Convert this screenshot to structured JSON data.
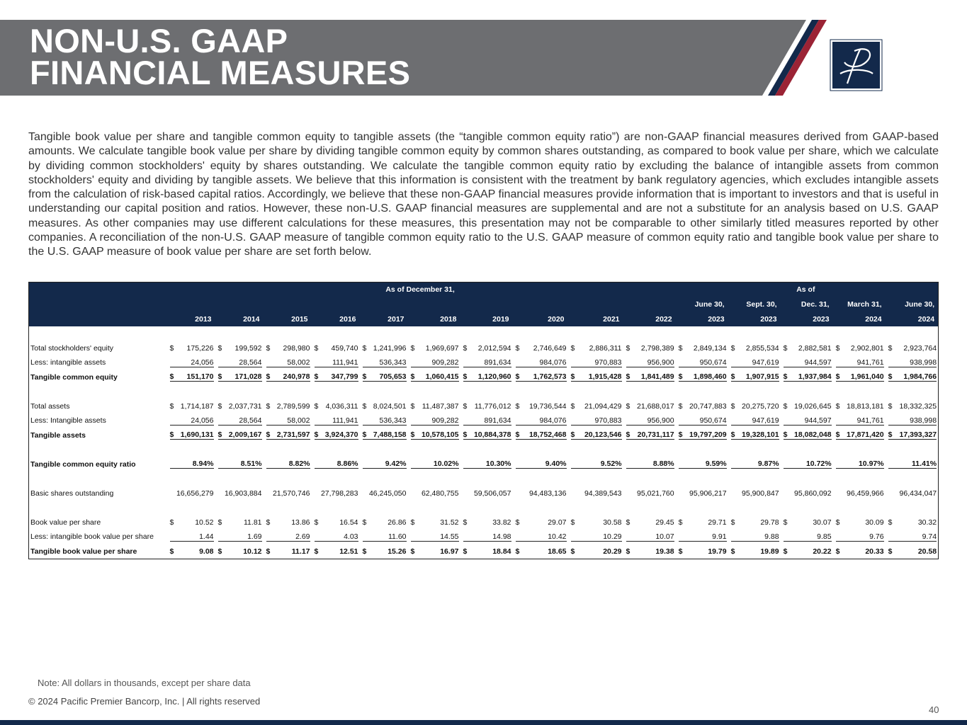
{
  "header": {
    "title_lines": [
      "NON-U.S. GAAP",
      "FINANCIAL MEASURES"
    ]
  },
  "intro": "Tangible book value per share and tangible common equity to tangible assets (the “tangible common equity ratio”) are non-GAAP financial measures derived from GAAP-based amounts. We calculate tangible book value per share by dividing tangible common equity by common shares outstanding, as compared to book value per share, which we calculate by dividing common stockholders' equity by shares outstanding. We calculate the tangible common equity ratio by excluding the balance of intangible assets from common stockholders' equity and dividing by tangible assets. We believe that this information is consistent with the treatment by bank regulatory agencies, which excludes intangible assets from the calculation of risk-based capital ratios. Accordingly, we believe that these non-GAAP financial measures provide information that is important to investors and that is useful in understanding our capital position and ratios.  However, these non-U.S. GAAP financial measures are supplemental and are not a substitute for an analysis based on U.S. GAAP measures. As other companies may use different calculations for these measures, this presentation may not be comparable to other similarly titled measures reported by other companies. A reconciliation of the non-U.S. GAAP measure of tangible common equity ratio to the U.S. GAAP measure of common equity ratio and tangible book value per share to the U.S. GAAP measure of book value per share are set forth below.",
  "table": {
    "group_headers": [
      "As of December 31,",
      "As of"
    ],
    "period_labels": [
      "June 30,",
      "Sept. 30,",
      "Dec. 31,",
      "March 31,",
      "June 30,"
    ],
    "years": [
      "2013",
      "2014",
      "2015",
      "2016",
      "2017",
      "2018",
      "2019",
      "2020",
      "2021",
      "2022",
      "2023",
      "2023",
      "2023",
      "2024",
      "2024"
    ],
    "rows": [
      {
        "label": "Total stockholders' equity",
        "prefix": "$",
        "cells": [
          "175,226",
          "199,592",
          "298,980",
          "459,740",
          "1,241,996",
          "1,969,697",
          "2,012,594",
          "2,746,649",
          "2,886,311",
          "2,798,389",
          "2,849,134",
          "2,855,534",
          "2,882,581",
          "2,902,801",
          "2,923,764"
        ]
      },
      {
        "label": "Less: intangible assets",
        "cells": [
          "24,056",
          "28,564",
          "58,002",
          "111,941",
          "536,343",
          "909,282",
          "891,634",
          "984,076",
          "970,883",
          "956,900",
          "950,674",
          "947,619",
          "944,597",
          "941,761",
          "938,998"
        ]
      },
      {
        "label": "Tangible common equity",
        "prefix": "$",
        "cells": [
          "151,170",
          "171,028",
          "240,978",
          "347,799",
          "705,653",
          "1,060,415",
          "1,120,960",
          "1,762,573",
          "1,915,428",
          "1,841,489",
          "1,898,460",
          "1,907,915",
          "1,937,984",
          "1,961,040",
          "1,984,766"
        ]
      },
      {
        "label": "Total assets",
        "prefix": "$",
        "cells": [
          "1,714,187",
          "2,037,731",
          "2,789,599",
          "4,036,311",
          "8,024,501",
          "11,487,387",
          "11,776,012",
          "19,736,544",
          "21,094,429",
          "21,688,017",
          "20,747,883",
          "20,275,720",
          "19,026,645",
          "18,813,181",
          "18,332,325"
        ]
      },
      {
        "label": "Less: Intangible assets",
        "cells": [
          "24,056",
          "28,564",
          "58,002",
          "111,941",
          "536,343",
          "909,282",
          "891,634",
          "984,076",
          "970,883",
          "956,900",
          "950,674",
          "947,619",
          "944,597",
          "941,761",
          "938,998"
        ]
      },
      {
        "label": "Tangible assets",
        "prefix": "$",
        "cells": [
          "1,690,131",
          "2,009,167",
          "2,731,597",
          "3,924,370",
          "7,488,158",
          "10,578,105",
          "10,884,378",
          "18,752,468",
          "20,123,546",
          "20,731,117",
          "19,797,209",
          "19,328,101",
          "18,082,048",
          "17,871,420",
          "17,393,327"
        ]
      },
      {
        "label": "Tangible common equity ratio",
        "cells": [
          "8.94%",
          "8.51%",
          "8.82%",
          "8.86%",
          "9.42%",
          "10.02%",
          "10.30%",
          "9.40%",
          "9.52%",
          "8.88%",
          "9.59%",
          "9.87%",
          "10.72%",
          "10.97%",
          "11.41%"
        ]
      },
      {
        "label": "Basic shares outstanding",
        "cells": [
          "16,656,279",
          "16,903,884",
          "21,570,746",
          "27,798,283",
          "46,245,050",
          "62,480,755",
          "59,506,057",
          "94,483,136",
          "94,389,543",
          "95,021,760",
          "95,906,217",
          "95,900,847",
          "95,860,092",
          "96,459,966",
          "96,434,047"
        ]
      },
      {
        "label": "Book value per share",
        "prefix": "$",
        "cells": [
          "10.52",
          "11.81",
          "13.86",
          "16.54",
          "26.86",
          "31.52",
          "33.82",
          "29.07",
          "30.58",
          "29.45",
          "29.71",
          "29.78",
          "30.07",
          "30.09",
          "30.32"
        ]
      },
      {
        "label": "Less: intangible book value per share",
        "cells": [
          "1.44",
          "1.69",
          "2.69",
          "4.03",
          "11.60",
          "14.55",
          "14.98",
          "10.42",
          "10.29",
          "10.07",
          "9.91",
          "9.88",
          "9.85",
          "9.76",
          "9.74"
        ]
      },
      {
        "label": "Tangible book value per share",
        "prefix": "$",
        "cells": [
          "9.08",
          "10.12",
          "11.17",
          "12.51",
          "15.26",
          "16.97",
          "18.84",
          "18.65",
          "20.29",
          "19.38",
          "19.79",
          "19.89",
          "20.22",
          "20.33",
          "20.58"
        ]
      }
    ]
  },
  "note": "Note: All dollars in thousands, except per share data",
  "copyright": "© 2024 Pacific Premier Bancorp, Inc. | All rights reserved",
  "page_number": "40"
}
